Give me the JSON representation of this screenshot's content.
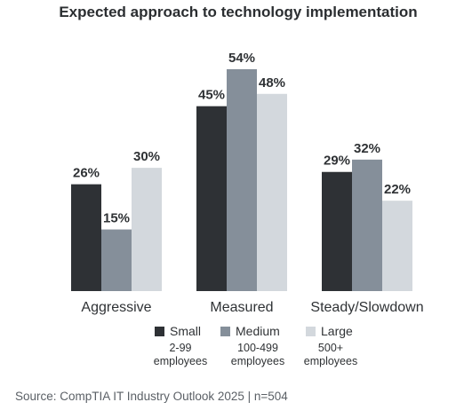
{
  "chart_data": {
    "type": "bar",
    "title": "Expected approach to technology implementation",
    "categories": [
      "Aggressive",
      "Measured",
      "Steady/Slowdown"
    ],
    "series": [
      {
        "name": "Small",
        "sublabel": "2-99 employees",
        "color": "#2e3135",
        "values": [
          26,
          45,
          29
        ],
        "labels": [
          "26%",
          "45%",
          "29%"
        ]
      },
      {
        "name": "Medium",
        "sublabel": "100-499 employees",
        "color": "#858f9a",
        "values": [
          15,
          54,
          32
        ],
        "labels": [
          "15%",
          "54%",
          "32%"
        ]
      },
      {
        "name": "Large",
        "sublabel": "500+ employees",
        "color": "#d3d8dd",
        "values": [
          30,
          48,
          22
        ],
        "labels": [
          "30%",
          "48%",
          "22%"
        ]
      }
    ],
    "unit": "%",
    "ylim": [
      0,
      55
    ],
    "grid": false,
    "legend_position": "bottom"
  },
  "source": "Source: CompTIA IT Industry Outlook 2025 | n=504"
}
